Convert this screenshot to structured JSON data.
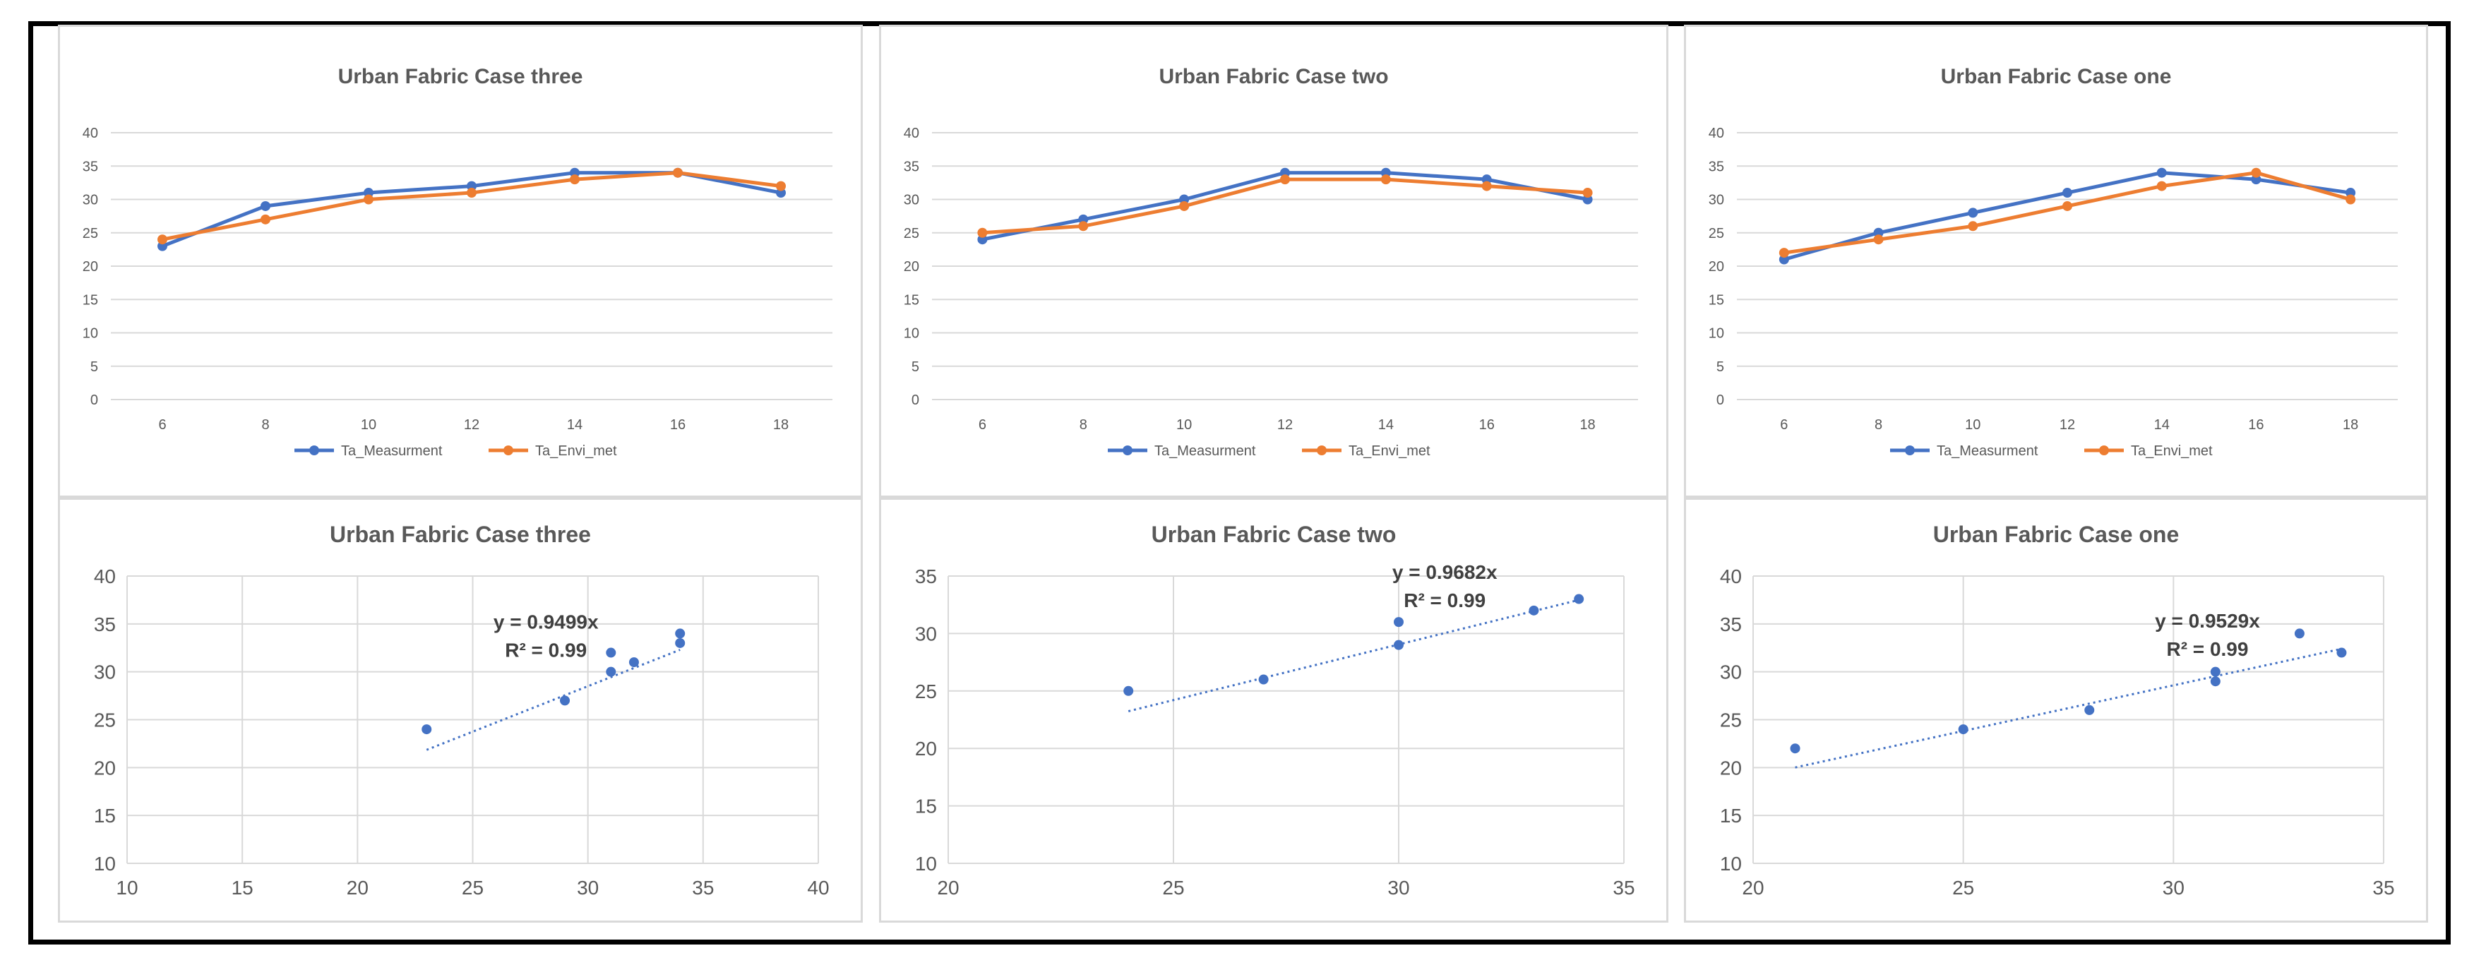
{
  "colors": {
    "measurement": "#4472c4",
    "envimet": "#ed7d31",
    "grid": "#d9d9d9",
    "text": "#595959"
  },
  "chart_data": [
    {
      "type": "line",
      "title": "Urban Fabric Case three",
      "x": [
        "6",
        "8",
        "10",
        "12",
        "14",
        "16",
        "18"
      ],
      "ylim": [
        0,
        40
      ],
      "yticks": [
        0,
        5,
        10,
        15,
        20,
        25,
        30,
        35,
        40
      ],
      "grid": true,
      "legend": "bottom",
      "series": [
        {
          "name": "Ta_Measurment",
          "values": [
            23,
            29,
            31,
            32,
            34,
            34,
            31
          ]
        },
        {
          "name": "Ta_Envi_met",
          "values": [
            24,
            27,
            30,
            31,
            33,
            34,
            32
          ]
        }
      ]
    },
    {
      "type": "line",
      "title": "Urban Fabric Case two",
      "x": [
        "6",
        "8",
        "10",
        "12",
        "14",
        "16",
        "18"
      ],
      "ylim": [
        0,
        40
      ],
      "yticks": [
        0,
        5,
        10,
        15,
        20,
        25,
        30,
        35,
        40
      ],
      "grid": true,
      "legend": "bottom",
      "series": [
        {
          "name": "Ta_Measurment",
          "values": [
            24,
            27,
            30,
            34,
            34,
            33,
            30
          ]
        },
        {
          "name": "Ta_Envi_met",
          "values": [
            25,
            26,
            29,
            33,
            33,
            32,
            31
          ]
        }
      ]
    },
    {
      "type": "line",
      "title": "Urban Fabric Case one",
      "x": [
        "6",
        "8",
        "10",
        "12",
        "14",
        "16",
        "18"
      ],
      "ylim": [
        0,
        40
      ],
      "yticks": [
        0,
        5,
        10,
        15,
        20,
        25,
        30,
        35,
        40
      ],
      "grid": true,
      "legend": "bottom",
      "series": [
        {
          "name": "Ta_Measurment",
          "values": [
            21,
            25,
            28,
            31,
            34,
            33,
            31
          ]
        },
        {
          "name": "Ta_Envi_met",
          "values": [
            22,
            24,
            26,
            29,
            32,
            34,
            30
          ]
        }
      ]
    },
    {
      "type": "scatter",
      "title": "Urban Fabric Case three",
      "xlim": [
        10,
        40
      ],
      "xticks": [
        10,
        15,
        20,
        25,
        30,
        35,
        40
      ],
      "ylim": [
        10,
        40
      ],
      "yticks": [
        10,
        15,
        20,
        25,
        30,
        35,
        40
      ],
      "grid": true,
      "points": [
        [
          23,
          24
        ],
        [
          29,
          27
        ],
        [
          31,
          30
        ],
        [
          31,
          32
        ],
        [
          32,
          31
        ],
        [
          34,
          33
        ],
        [
          34,
          34
        ]
      ],
      "trendline": {
        "slope": 0.9499,
        "equation": "y = 0.9499x",
        "r2": "R² = 0.99"
      }
    },
    {
      "type": "scatter",
      "title": "Urban Fabric Case two",
      "xlim": [
        20,
        35
      ],
      "xticks": [
        20,
        25,
        30,
        35
      ],
      "ylim": [
        10,
        35
      ],
      "yticks": [
        10,
        15,
        20,
        25,
        30,
        35
      ],
      "grid": true,
      "points": [
        [
          24,
          25
        ],
        [
          27,
          26
        ],
        [
          30,
          29
        ],
        [
          30,
          31
        ],
        [
          33,
          32
        ],
        [
          34,
          33
        ]
      ],
      "trendline": {
        "slope": 0.9682,
        "equation": "y = 0.9682x",
        "r2": "R² = 0.99"
      }
    },
    {
      "type": "scatter",
      "title": "Urban Fabric Case one",
      "xlim": [
        20,
        35
      ],
      "xticks": [
        20,
        25,
        30,
        35
      ],
      "ylim": [
        10,
        40
      ],
      "yticks": [
        10,
        15,
        20,
        25,
        30,
        35,
        40
      ],
      "grid": true,
      "points": [
        [
          21,
          22
        ],
        [
          25,
          24
        ],
        [
          28,
          26
        ],
        [
          31,
          29
        ],
        [
          31,
          30
        ],
        [
          33,
          34
        ],
        [
          34,
          32
        ]
      ],
      "trendline": {
        "slope": 0.9529,
        "equation": "y = 0.9529x",
        "r2": "R² = 0.99"
      }
    }
  ]
}
